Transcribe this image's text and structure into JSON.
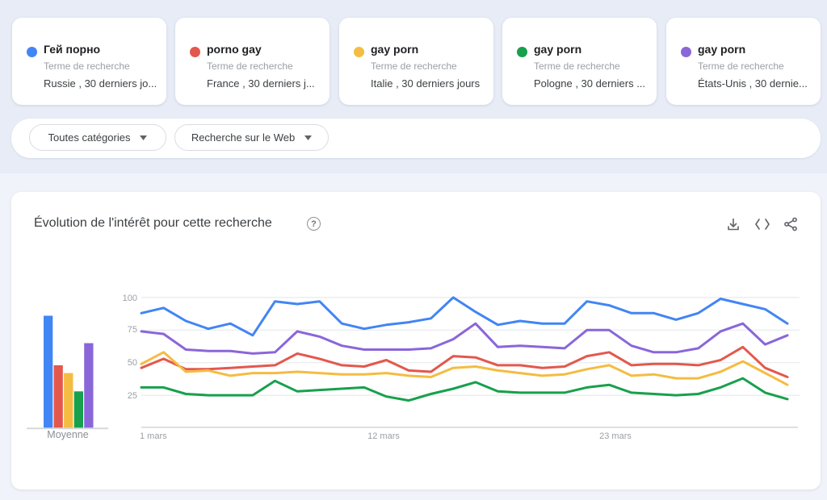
{
  "palette": {
    "blue": "#4285f4",
    "red": "#e3584d",
    "yellow": "#f4bc42",
    "green": "#18a04d",
    "purple": "#8a66d9"
  },
  "cards": [
    {
      "term": "Гей порно",
      "type": "Terme de recherche",
      "scope": "Russie , 30 derniers jo...",
      "color": "blue"
    },
    {
      "term": "porno gay",
      "type": "Terme de recherche",
      "scope": "France , 30 derniers j...",
      "color": "red"
    },
    {
      "term": "gay porn",
      "type": "Terme de recherche",
      "scope": "Italie , 30 derniers jours",
      "color": "yellow"
    },
    {
      "term": "gay porn",
      "type": "Terme de recherche",
      "scope": "Pologne , 30 derniers ...",
      "color": "green"
    },
    {
      "term": "gay porn",
      "type": "Terme de recherche",
      "scope": "États-Unis , 30 dernie...",
      "color": "purple"
    }
  ],
  "filters": {
    "category": "Toutes catégories",
    "search_type": "Recherche sur le Web"
  },
  "section": {
    "title": "Évolution de l'intérêt pour cette recherche",
    "icons": [
      "download",
      "embed",
      "share"
    ]
  },
  "chart_data": [
    {
      "type": "bar",
      "xlabel": "Moyenne",
      "categories": [
        "Гей порно (Russie)",
        "porno gay (France)",
        "gay porn (Italie)",
        "gay porn (Pologne)",
        "gay porn (États-Unis)"
      ],
      "values": [
        86,
        48,
        42,
        28,
        65
      ],
      "colors": [
        "blue",
        "red",
        "yellow",
        "green",
        "purple"
      ],
      "ylim": [
        0,
        100
      ]
    },
    {
      "type": "line",
      "days": 30,
      "ylim": [
        0,
        100
      ],
      "grid": true,
      "yticks": [
        25,
        50,
        75,
        100
      ],
      "xticks": [
        {
          "day": 1,
          "label": "1 mars"
        },
        {
          "day": 12,
          "label": "12 mars"
        },
        {
          "day": 23,
          "label": "23 mars"
        }
      ],
      "series": [
        {
          "name": "Гей порно (Russie)",
          "color": "blue",
          "values": [
            88,
            92,
            82,
            76,
            80,
            71,
            97,
            95,
            97,
            80,
            76,
            79,
            81,
            84,
            100,
            89,
            79,
            82,
            80,
            80,
            97,
            94,
            88,
            88,
            83,
            88,
            99,
            95,
            91,
            80
          ]
        },
        {
          "name": "porno gay (France)",
          "color": "red",
          "values": [
            46,
            53,
            45,
            45,
            46,
            47,
            48,
            57,
            53,
            48,
            47,
            52,
            44,
            43,
            55,
            54,
            48,
            48,
            46,
            47,
            55,
            58,
            48,
            49,
            49,
            48,
            52,
            62,
            46,
            39
          ]
        },
        {
          "name": "gay porn (Italie)",
          "color": "yellow",
          "values": [
            49,
            58,
            43,
            44,
            40,
            42,
            42,
            43,
            42,
            41,
            41,
            42,
            40,
            39,
            46,
            47,
            44,
            42,
            40,
            41,
            45,
            48,
            40,
            41,
            38,
            38,
            43,
            51,
            42,
            33
          ]
        },
        {
          "name": "gay porn (Pologne)",
          "color": "green",
          "values": [
            31,
            31,
            26,
            25,
            25,
            25,
            36,
            28,
            29,
            30,
            31,
            24,
            21,
            26,
            30,
            35,
            28,
            27,
            27,
            27,
            31,
            33,
            27,
            26,
            25,
            26,
            31,
            38,
            27,
            22
          ]
        },
        {
          "name": "gay porn (États-Unis)",
          "color": "purple",
          "values": [
            74,
            72,
            60,
            59,
            59,
            57,
            58,
            74,
            70,
            63,
            60,
            60,
            60,
            61,
            68,
            80,
            62,
            63,
            62,
            61,
            75,
            75,
            63,
            58,
            58,
            61,
            74,
            80,
            64,
            71
          ]
        }
      ]
    }
  ]
}
